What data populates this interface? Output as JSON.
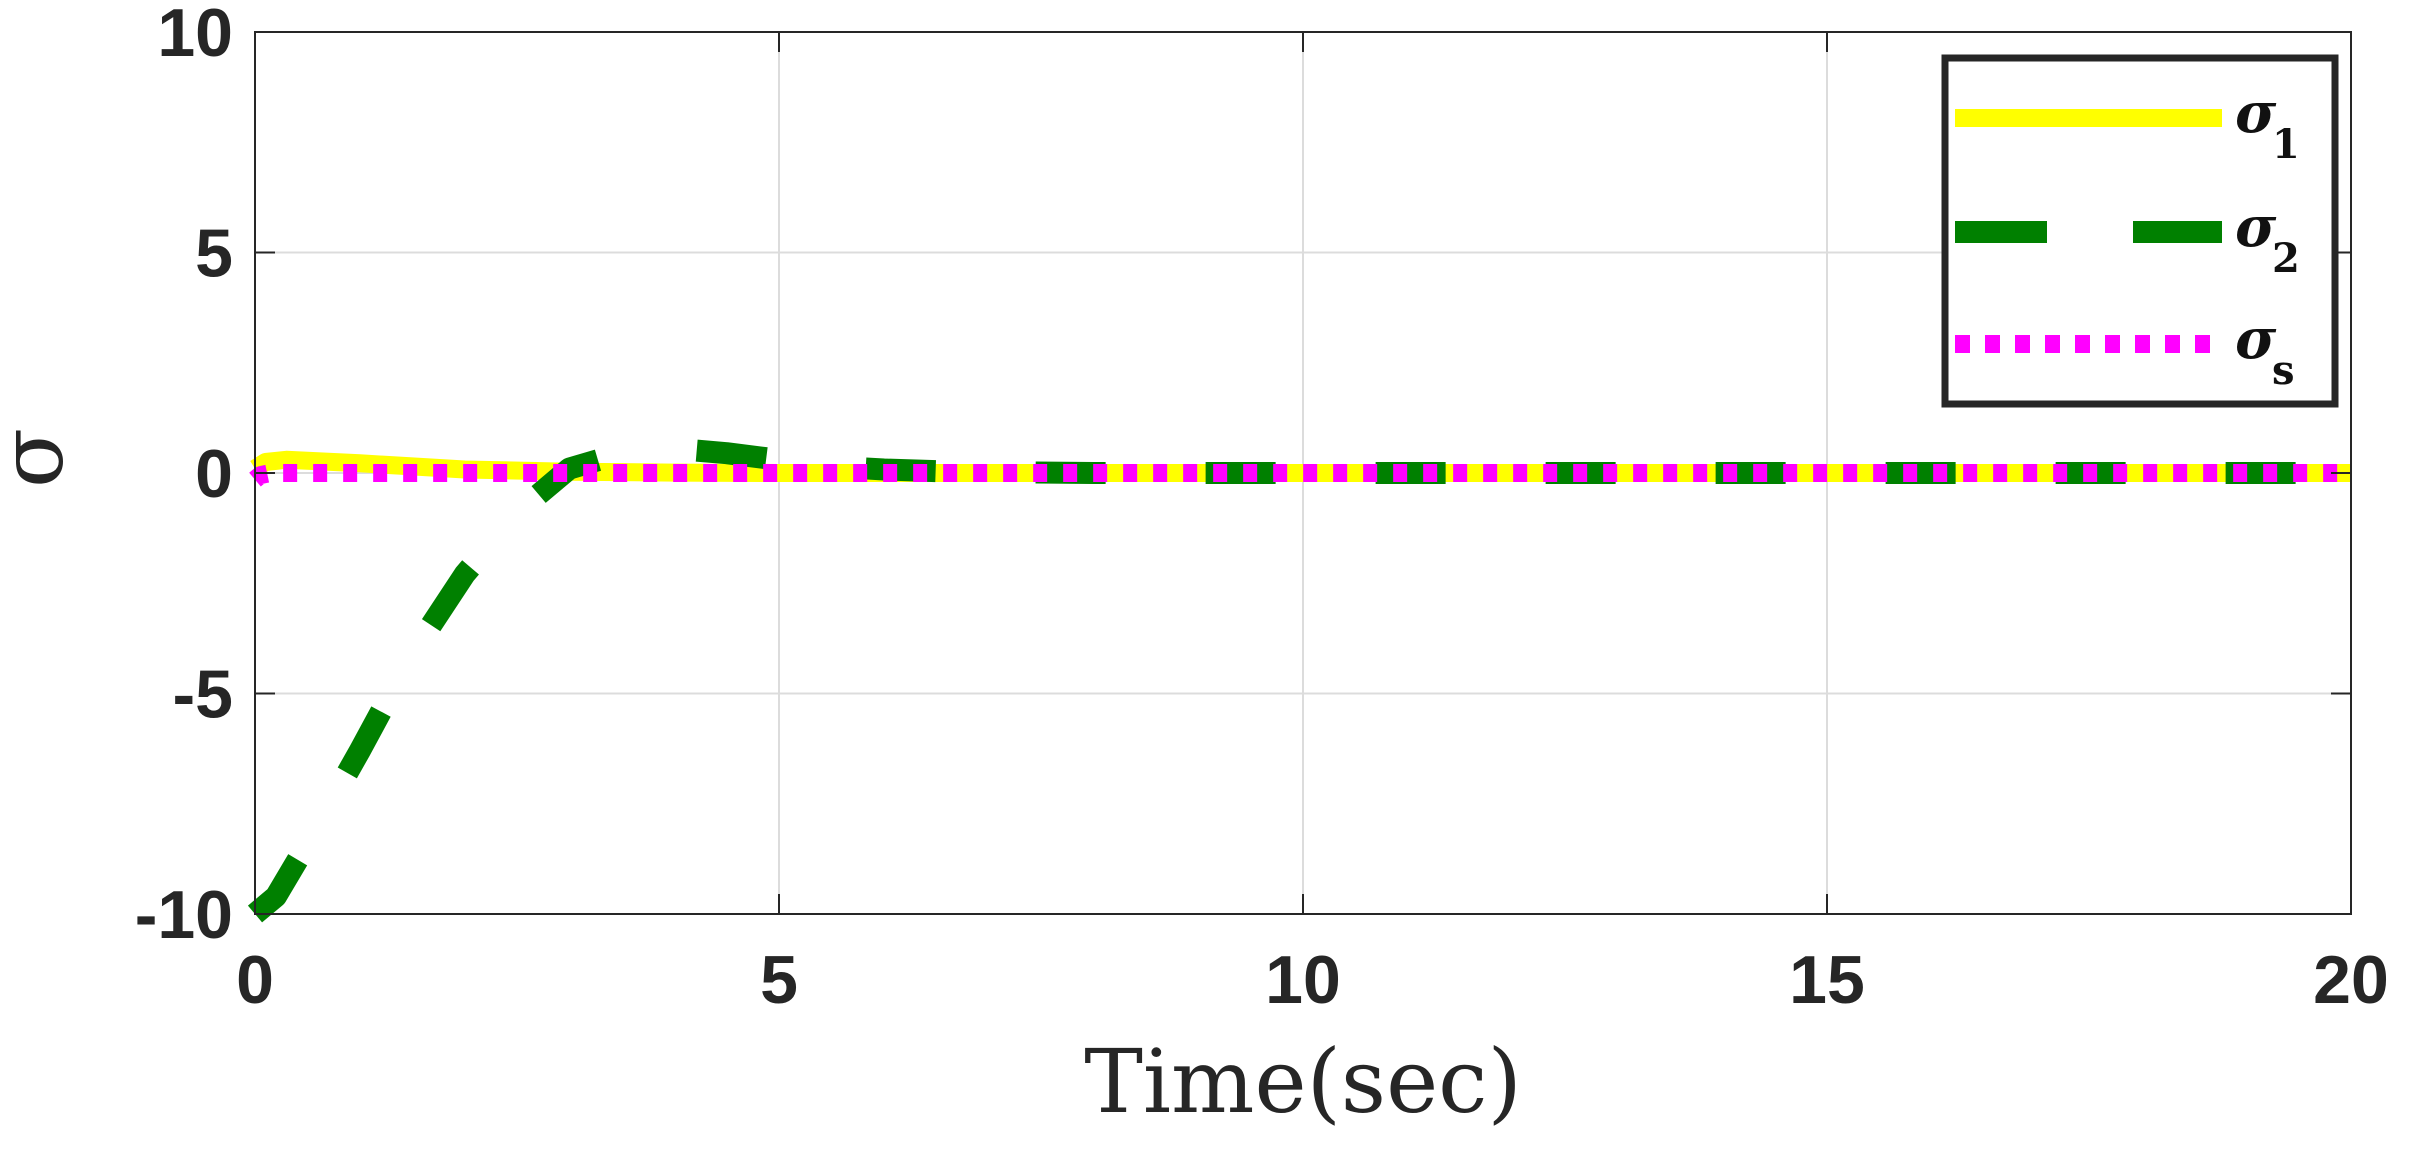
{
  "chart_data": {
    "type": "line",
    "title": "",
    "xlabel": "Time(sec)",
    "ylabel": "σ",
    "xlim": [
      0,
      20
    ],
    "ylim": [
      -10,
      10
    ],
    "xticks": [
      0,
      5,
      10,
      15,
      20
    ],
    "yticks": [
      -10,
      -5,
      0,
      5,
      10
    ],
    "grid": true,
    "legend_position": "top-right",
    "series": [
      {
        "name": "σ",
        "name_sub": "1",
        "color": "#FFFF00",
        "dash": "solid",
        "x": [
          0,
          0.1,
          0.3,
          0.5,
          1,
          1.5,
          2,
          3,
          4,
          5,
          6,
          8,
          10,
          12,
          14,
          16,
          18,
          20
        ],
        "y": [
          0.1,
          0.25,
          0.3,
          0.28,
          0.22,
          0.15,
          0.08,
          0.03,
          0.01,
          0,
          0,
          0,
          0,
          0,
          0,
          0,
          0,
          0
        ]
      },
      {
        "name": "σ",
        "name_sub": "2",
        "color": "#008000",
        "dash": "dashed",
        "x": [
          0,
          0.2,
          0.5,
          1,
          1.5,
          2,
          2.5,
          3,
          3.5,
          4,
          4.5,
          5,
          5.5,
          6,
          6.5,
          7,
          8,
          10,
          12,
          14,
          16,
          18,
          20
        ],
        "y": [
          -10,
          -9.6,
          -8.4,
          -6.3,
          -4.1,
          -2.3,
          -0.9,
          0.1,
          0.45,
          0.55,
          0.45,
          0.3,
          0.15,
          0.08,
          0.04,
          0.02,
          0,
          0,
          0,
          0,
          0,
          0,
          0
        ]
      },
      {
        "name": "σ",
        "name_sub": "s",
        "color": "#FF00FF",
        "dash": "dotted",
        "x": [
          0,
          0.05,
          0.15,
          0.3,
          0.5,
          1,
          2,
          5,
          10,
          15,
          20
        ],
        "y": [
          -0.15,
          -0.05,
          0,
          0,
          0,
          0,
          0,
          0,
          0,
          0,
          0
        ]
      }
    ]
  }
}
